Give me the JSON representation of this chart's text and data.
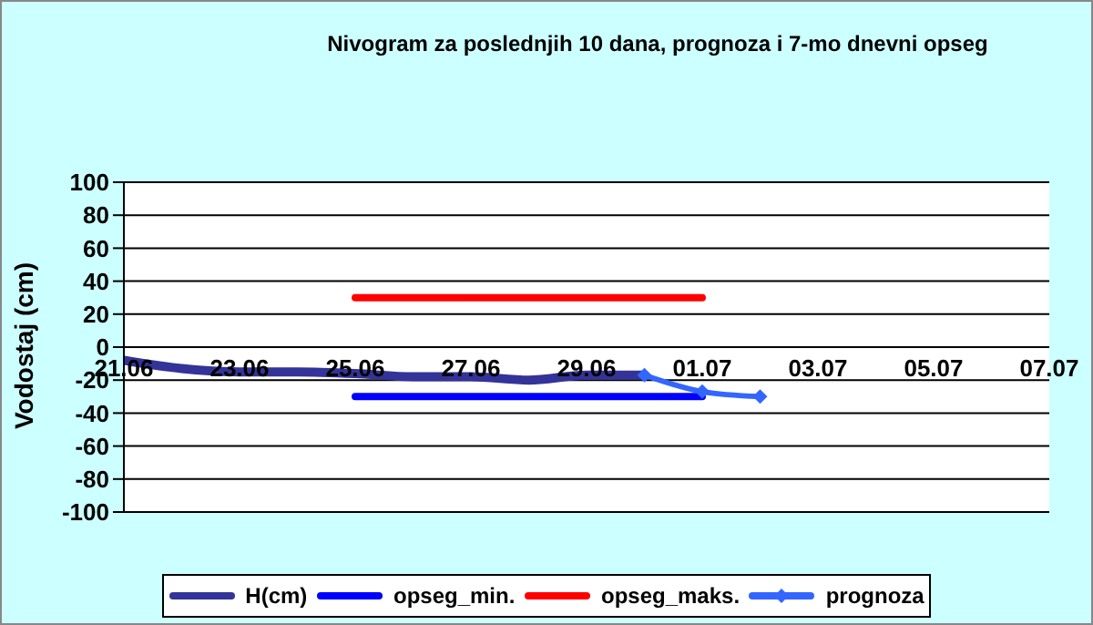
{
  "chart_data": {
    "type": "line",
    "title": "Nivogram za poslednjih 10 dana, prognoza i 7-mo dnevni opseg",
    "ylabel": "Vodostaj (cm)",
    "xlim": [
      "--06-21",
      "--07-07"
    ],
    "xticks": [
      {
        "value": "--06-21",
        "label": "21.06"
      },
      {
        "value": "--06-23",
        "label": "23.06"
      },
      {
        "value": "--06-25",
        "label": "25.06"
      },
      {
        "value": "--06-27",
        "label": "27.06"
      },
      {
        "value": "--06-29",
        "label": "29.06"
      },
      {
        "value": "--07-01",
        "label": "01.07"
      },
      {
        "value": "--07-03",
        "label": "03.07"
      },
      {
        "value": "--07-05",
        "label": "05.07"
      },
      {
        "value": "--07-07",
        "label": "07.07"
      }
    ],
    "ylim": [
      -100,
      100
    ],
    "yticks": [
      -100,
      -80,
      -60,
      -40,
      -20,
      0,
      20,
      40,
      60,
      80,
      100
    ],
    "grid": "y",
    "legend": "bottom",
    "series": [
      {
        "name": "H(cm)",
        "color": "#333399",
        "marker": "none",
        "x": [
          "--06-21",
          "--06-22",
          "--06-23",
          "--06-24",
          "--06-25",
          "--06-26",
          "--06-27",
          "--06-28",
          "--06-29",
          "--06-30"
        ],
        "values": [
          -8,
          -13,
          -15,
          -15,
          -16,
          -18,
          -18,
          -20,
          -17,
          -17
        ]
      },
      {
        "name": "opseg_min.",
        "color": "#0000ff",
        "marker": "none",
        "x": [
          "--06-25",
          "--07-01"
        ],
        "values": [
          -30,
          -30
        ]
      },
      {
        "name": "opseg_maks.",
        "color": "#ff0000",
        "marker": "none",
        "x": [
          "--06-25",
          "--07-01"
        ],
        "values": [
          30,
          30
        ]
      },
      {
        "name": "prognoza",
        "color": "#3366ff",
        "marker": "diamond",
        "x": [
          "--06-30",
          "--07-01",
          "--07-02"
        ],
        "values": [
          -17,
          -27,
          -30
        ]
      }
    ]
  }
}
